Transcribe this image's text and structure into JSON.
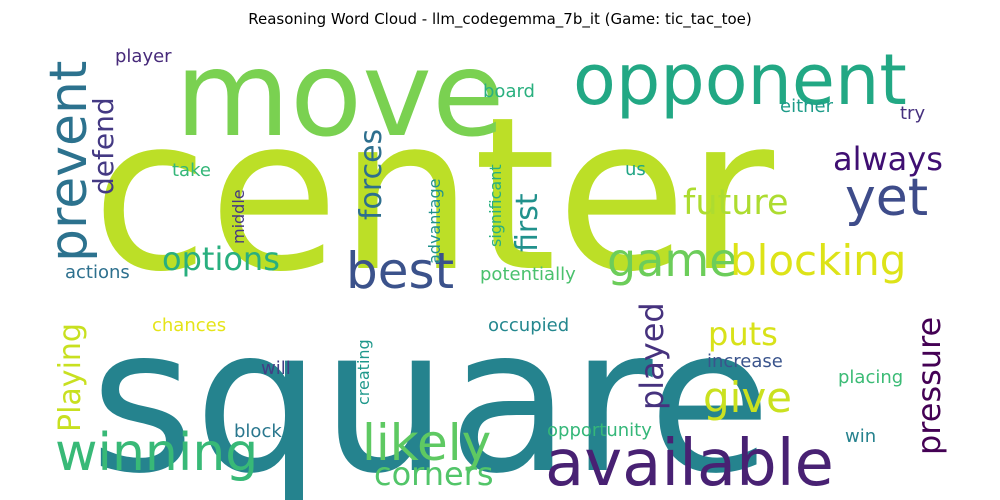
{
  "chart_data": {
    "type": "wordcloud",
    "title": "Reasoning Word Cloud - llm_codegemma_7b_it (Game: tic_tac_toe)",
    "words": [
      {
        "text": "center",
        "weight": 100,
        "color": "#bcdf27"
      },
      {
        "text": "square",
        "weight": 96,
        "color": "#25838e"
      },
      {
        "text": "move",
        "weight": 60,
        "color": "#7ad151"
      },
      {
        "text": "opponent",
        "weight": 36,
        "color": "#22a884"
      },
      {
        "text": "available",
        "weight": 32,
        "color": "#482173"
      },
      {
        "text": "winning",
        "weight": 26,
        "color": "#38b977"
      },
      {
        "text": "prevent",
        "weight": 26,
        "color": "#2c728e"
      },
      {
        "text": "yet",
        "weight": 26,
        "color": "#3e4c8a"
      },
      {
        "text": "best",
        "weight": 25,
        "color": "#3b528b"
      },
      {
        "text": "likely",
        "weight": 25,
        "color": "#5ec962"
      },
      {
        "text": "game",
        "weight": 24,
        "color": "#6ccd5a"
      },
      {
        "text": "blocking",
        "weight": 22,
        "color": "#dde318"
      },
      {
        "text": "give",
        "weight": 22,
        "color": "#cae11f"
      },
      {
        "text": "pressure",
        "weight": 18,
        "color": "#440154"
      },
      {
        "text": "future",
        "weight": 18,
        "color": "#addc30"
      },
      {
        "text": "always",
        "weight": 17,
        "color": "#3f0f72"
      },
      {
        "text": "options",
        "weight": 17,
        "color": "#29af7f"
      },
      {
        "text": "played",
        "weight": 17,
        "color": "#46327e"
      },
      {
        "text": "corners",
        "weight": 17,
        "color": "#52c569"
      },
      {
        "text": "first",
        "weight": 16,
        "color": "#21918c"
      },
      {
        "text": "forces",
        "weight": 16,
        "color": "#2e6f8e"
      },
      {
        "text": "puts",
        "weight": 16,
        "color": "#d8e219"
      },
      {
        "text": "Playing",
        "weight": 15,
        "color": "#c8e020"
      },
      {
        "text": "defend",
        "weight": 15,
        "color": "#443983"
      },
      {
        "text": "player",
        "weight": 9,
        "color": "#472a7a"
      },
      {
        "text": "board",
        "weight": 9,
        "color": "#2ab07f"
      },
      {
        "text": "either",
        "weight": 9,
        "color": "#1e9c89"
      },
      {
        "text": "try",
        "weight": 9,
        "color": "#46307e"
      },
      {
        "text": "take",
        "weight": 9,
        "color": "#35b779"
      },
      {
        "text": "middle",
        "weight": 8,
        "color": "#453882"
      },
      {
        "text": "advantage",
        "weight": 8,
        "color": "#20928c"
      },
      {
        "text": "significant",
        "weight": 8,
        "color": "#29af7f"
      },
      {
        "text": "us",
        "weight": 9,
        "color": "#21a585"
      },
      {
        "text": "actions",
        "weight": 9,
        "color": "#2d708e"
      },
      {
        "text": "potentially",
        "weight": 9,
        "color": "#4ac16d"
      },
      {
        "text": "chances",
        "weight": 9,
        "color": "#e5e419"
      },
      {
        "text": "occupied",
        "weight": 9,
        "color": "#24878e"
      },
      {
        "text": "will",
        "weight": 9,
        "color": "#433e85"
      },
      {
        "text": "creating",
        "weight": 8,
        "color": "#1f988b"
      },
      {
        "text": "increase",
        "weight": 9,
        "color": "#3a548c"
      },
      {
        "text": "placing",
        "weight": 9,
        "color": "#3bbb75"
      },
      {
        "text": "block",
        "weight": 9,
        "color": "#2a778e"
      },
      {
        "text": "opportunity",
        "weight": 9,
        "color": "#35b779"
      },
      {
        "text": "win",
        "weight": 9,
        "color": "#26828e"
      }
    ]
  }
}
